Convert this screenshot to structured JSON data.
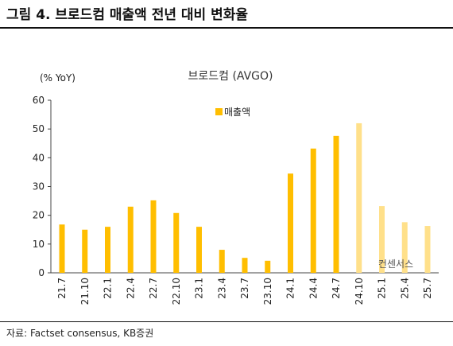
{
  "figure": {
    "title": "그림 4. 브로드컴 매출액 전년 대비 변화율",
    "source": "자료: Factset consensus, KB증권"
  },
  "chart_data": {
    "type": "bar",
    "title": "브로드컴 (AVGO)",
    "ylabel": "(% YoY)",
    "ylim": [
      0,
      60
    ],
    "yticks": [
      0,
      10,
      20,
      30,
      40,
      50,
      60
    ],
    "categories": [
      "21.7",
      "21.10",
      "22.1",
      "22.4",
      "22.7",
      "22.10",
      "23.1",
      "23.4",
      "23.7",
      "23.10",
      "24.1",
      "24.4",
      "24.7",
      "24.10",
      "25.1",
      "25.4",
      "25.7"
    ],
    "series": [
      {
        "name": "매출액",
        "values": [
          16.8,
          15.0,
          16.0,
          23.0,
          25.2,
          20.8,
          16.0,
          8.0,
          5.2,
          4.2,
          34.5,
          43.2,
          47.6,
          52.0,
          23.2,
          17.6,
          16.3
        ]
      }
    ],
    "estimate_start_index": 13,
    "estimate_label": "컨센서스",
    "colors": {
      "actual": "#FFBE00",
      "estimate": "#FFE08A"
    },
    "grid": false,
    "legend_position": "top-center"
  }
}
